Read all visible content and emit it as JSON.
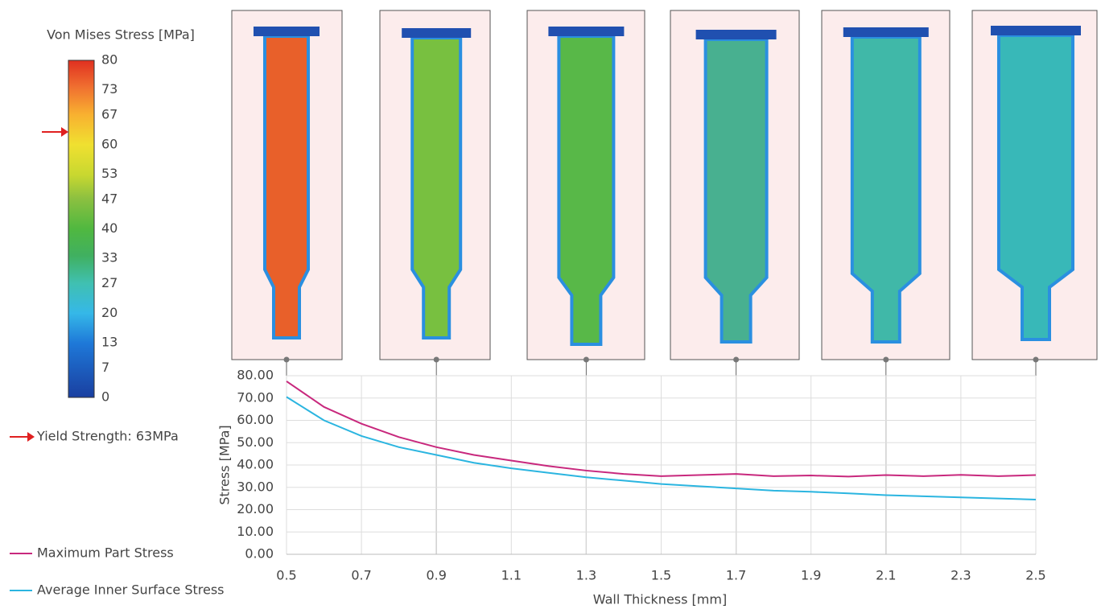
{
  "chart_data": {
    "type": "line",
    "xlabel": "Wall Thickness [mm]",
    "ylabel": "Stress [MPa]",
    "x": [
      0.5,
      0.6,
      0.7,
      0.8,
      0.9,
      1.0,
      1.1,
      1.2,
      1.3,
      1.4,
      1.5,
      1.6,
      1.7,
      1.8,
      1.9,
      2.0,
      2.1,
      2.2,
      2.3,
      2.4,
      2.5
    ],
    "series": [
      {
        "name": "Maximum Part Stress",
        "color": "#c8287d",
        "values": [
          77.5,
          66,
          58.5,
          52.5,
          48,
          44.5,
          42,
          39.5,
          37.5,
          36,
          35,
          35.5,
          36,
          35,
          35.3,
          34.8,
          35.5,
          35,
          35.6,
          35,
          35.5
        ]
      },
      {
        "name": "Average Inner Surface Stress",
        "color": "#2bb5e0",
        "values": [
          70.5,
          60,
          53,
          48,
          44.5,
          41,
          38.5,
          36.5,
          34.5,
          33,
          31.5,
          30.5,
          29.5,
          28.5,
          28,
          27.3,
          26.5,
          26,
          25.5,
          25,
          24.5
        ]
      }
    ],
    "xlim": [
      0.5,
      2.5
    ],
    "xticks": [
      0.5,
      0.7,
      0.9,
      1.1,
      1.3,
      1.5,
      1.7,
      1.9,
      2.1,
      2.3,
      2.5
    ],
    "ylim": [
      0,
      80
    ],
    "yticks": [
      {
        "value": 0,
        "label": "0.00"
      },
      {
        "value": 10,
        "label": "10.00"
      },
      {
        "value": 20,
        "label": "20.00"
      },
      {
        "value": 30,
        "label": "30.00"
      },
      {
        "value": 40,
        "label": "40.00"
      },
      {
        "value": 50,
        "label": "50.00"
      },
      {
        "value": 60,
        "label": "60.00"
      },
      {
        "value": 70,
        "label": "70.00"
      },
      {
        "value": 80,
        "label": "80.00"
      }
    ],
    "grid": true,
    "colorbar": {
      "title": "Von Mises Stress [MPa]",
      "lim": [
        0,
        80
      ],
      "ticks": [
        0,
        7,
        13,
        20,
        27,
        33,
        40,
        47,
        53,
        60,
        67,
        73,
        80
      ]
    },
    "annotation": {
      "text": "Yield Strength: 63MPa",
      "value": 63
    }
  }
}
